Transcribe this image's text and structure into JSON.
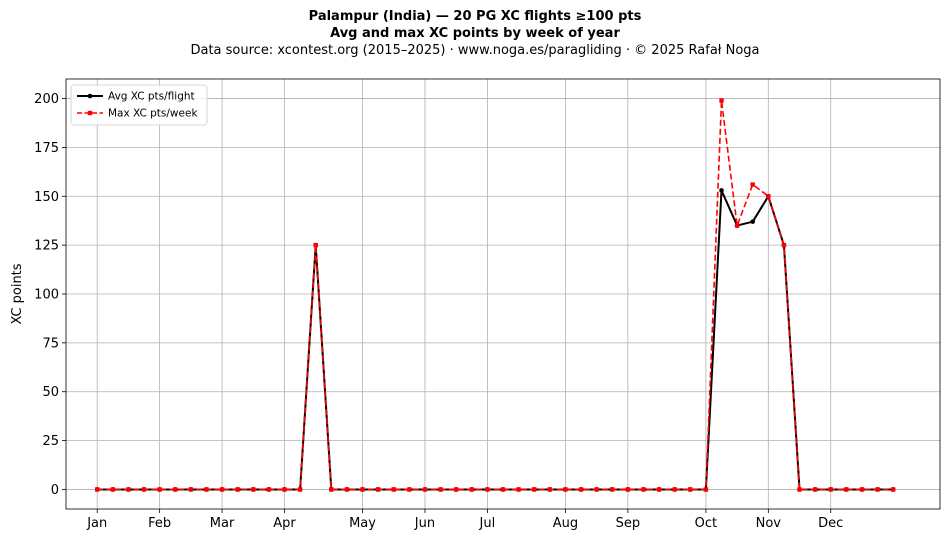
{
  "chart_data": {
    "type": "line",
    "title": "Palampur (India)  —  20 PG XC flights ≥100 pts",
    "subtitle": "Avg and max XC points by week of year",
    "source_line": "Data source: xcontest.org (2015–2025)  ·  www.noga.es/paragliding  ·  © 2025 Rafał Noga",
    "xlabel": "",
    "ylabel": "XC points",
    "ylim": [
      -10,
      210
    ],
    "xlim": [
      -2,
      54
    ],
    "yticks": [
      0,
      25,
      50,
      75,
      100,
      125,
      150,
      175,
      200
    ],
    "xticks": [
      {
        "label": "Jan",
        "week": 0
      },
      {
        "label": "Feb",
        "week": 4
      },
      {
        "label": "Mar",
        "week": 8
      },
      {
        "label": "Apr",
        "week": 12
      },
      {
        "label": "May",
        "week": 17
      },
      {
        "label": "Jun",
        "week": 21
      },
      {
        "label": "Jul",
        "week": 25
      },
      {
        "label": "Aug",
        "week": 30
      },
      {
        "label": "Sep",
        "week": 34
      },
      {
        "label": "Oct",
        "week": 39
      },
      {
        "label": "Nov",
        "week": 43
      },
      {
        "label": "Dec",
        "week": 47
      }
    ],
    "grid": true,
    "legend_position": "top-left",
    "x": [
      0,
      1,
      2,
      3,
      4,
      5,
      6,
      7,
      8,
      9,
      10,
      11,
      12,
      13,
      14,
      15,
      16,
      17,
      18,
      19,
      20,
      21,
      22,
      23,
      24,
      25,
      26,
      27,
      28,
      29,
      30,
      31,
      32,
      33,
      34,
      35,
      36,
      37,
      38,
      39,
      40,
      41,
      42,
      43,
      44,
      45,
      46,
      47,
      48,
      49,
      50,
      51
    ],
    "series": [
      {
        "name": "Avg XC pts/flight",
        "color": "#000000",
        "style": "solid",
        "marker": "circle",
        "values": [
          0,
          0,
          0,
          0,
          0,
          0,
          0,
          0,
          0,
          0,
          0,
          0,
          0,
          0,
          125,
          0,
          0,
          0,
          0,
          0,
          0,
          0,
          0,
          0,
          0,
          0,
          0,
          0,
          0,
          0,
          0,
          0,
          0,
          0,
          0,
          0,
          0,
          0,
          0,
          0,
          153,
          135,
          137,
          150,
          125,
          0,
          0,
          0,
          0,
          0,
          0,
          0
        ]
      },
      {
        "name": "Max XC pts/week",
        "color": "#ff0000",
        "style": "dashed",
        "marker": "square",
        "values": [
          0,
          0,
          0,
          0,
          0,
          0,
          0,
          0,
          0,
          0,
          0,
          0,
          0,
          0,
          125,
          0,
          0,
          0,
          0,
          0,
          0,
          0,
          0,
          0,
          0,
          0,
          0,
          0,
          0,
          0,
          0,
          0,
          0,
          0,
          0,
          0,
          0,
          0,
          0,
          0,
          199,
          135,
          156,
          150,
          125,
          0,
          0,
          0,
          0,
          0,
          0,
          0
        ]
      }
    ]
  }
}
